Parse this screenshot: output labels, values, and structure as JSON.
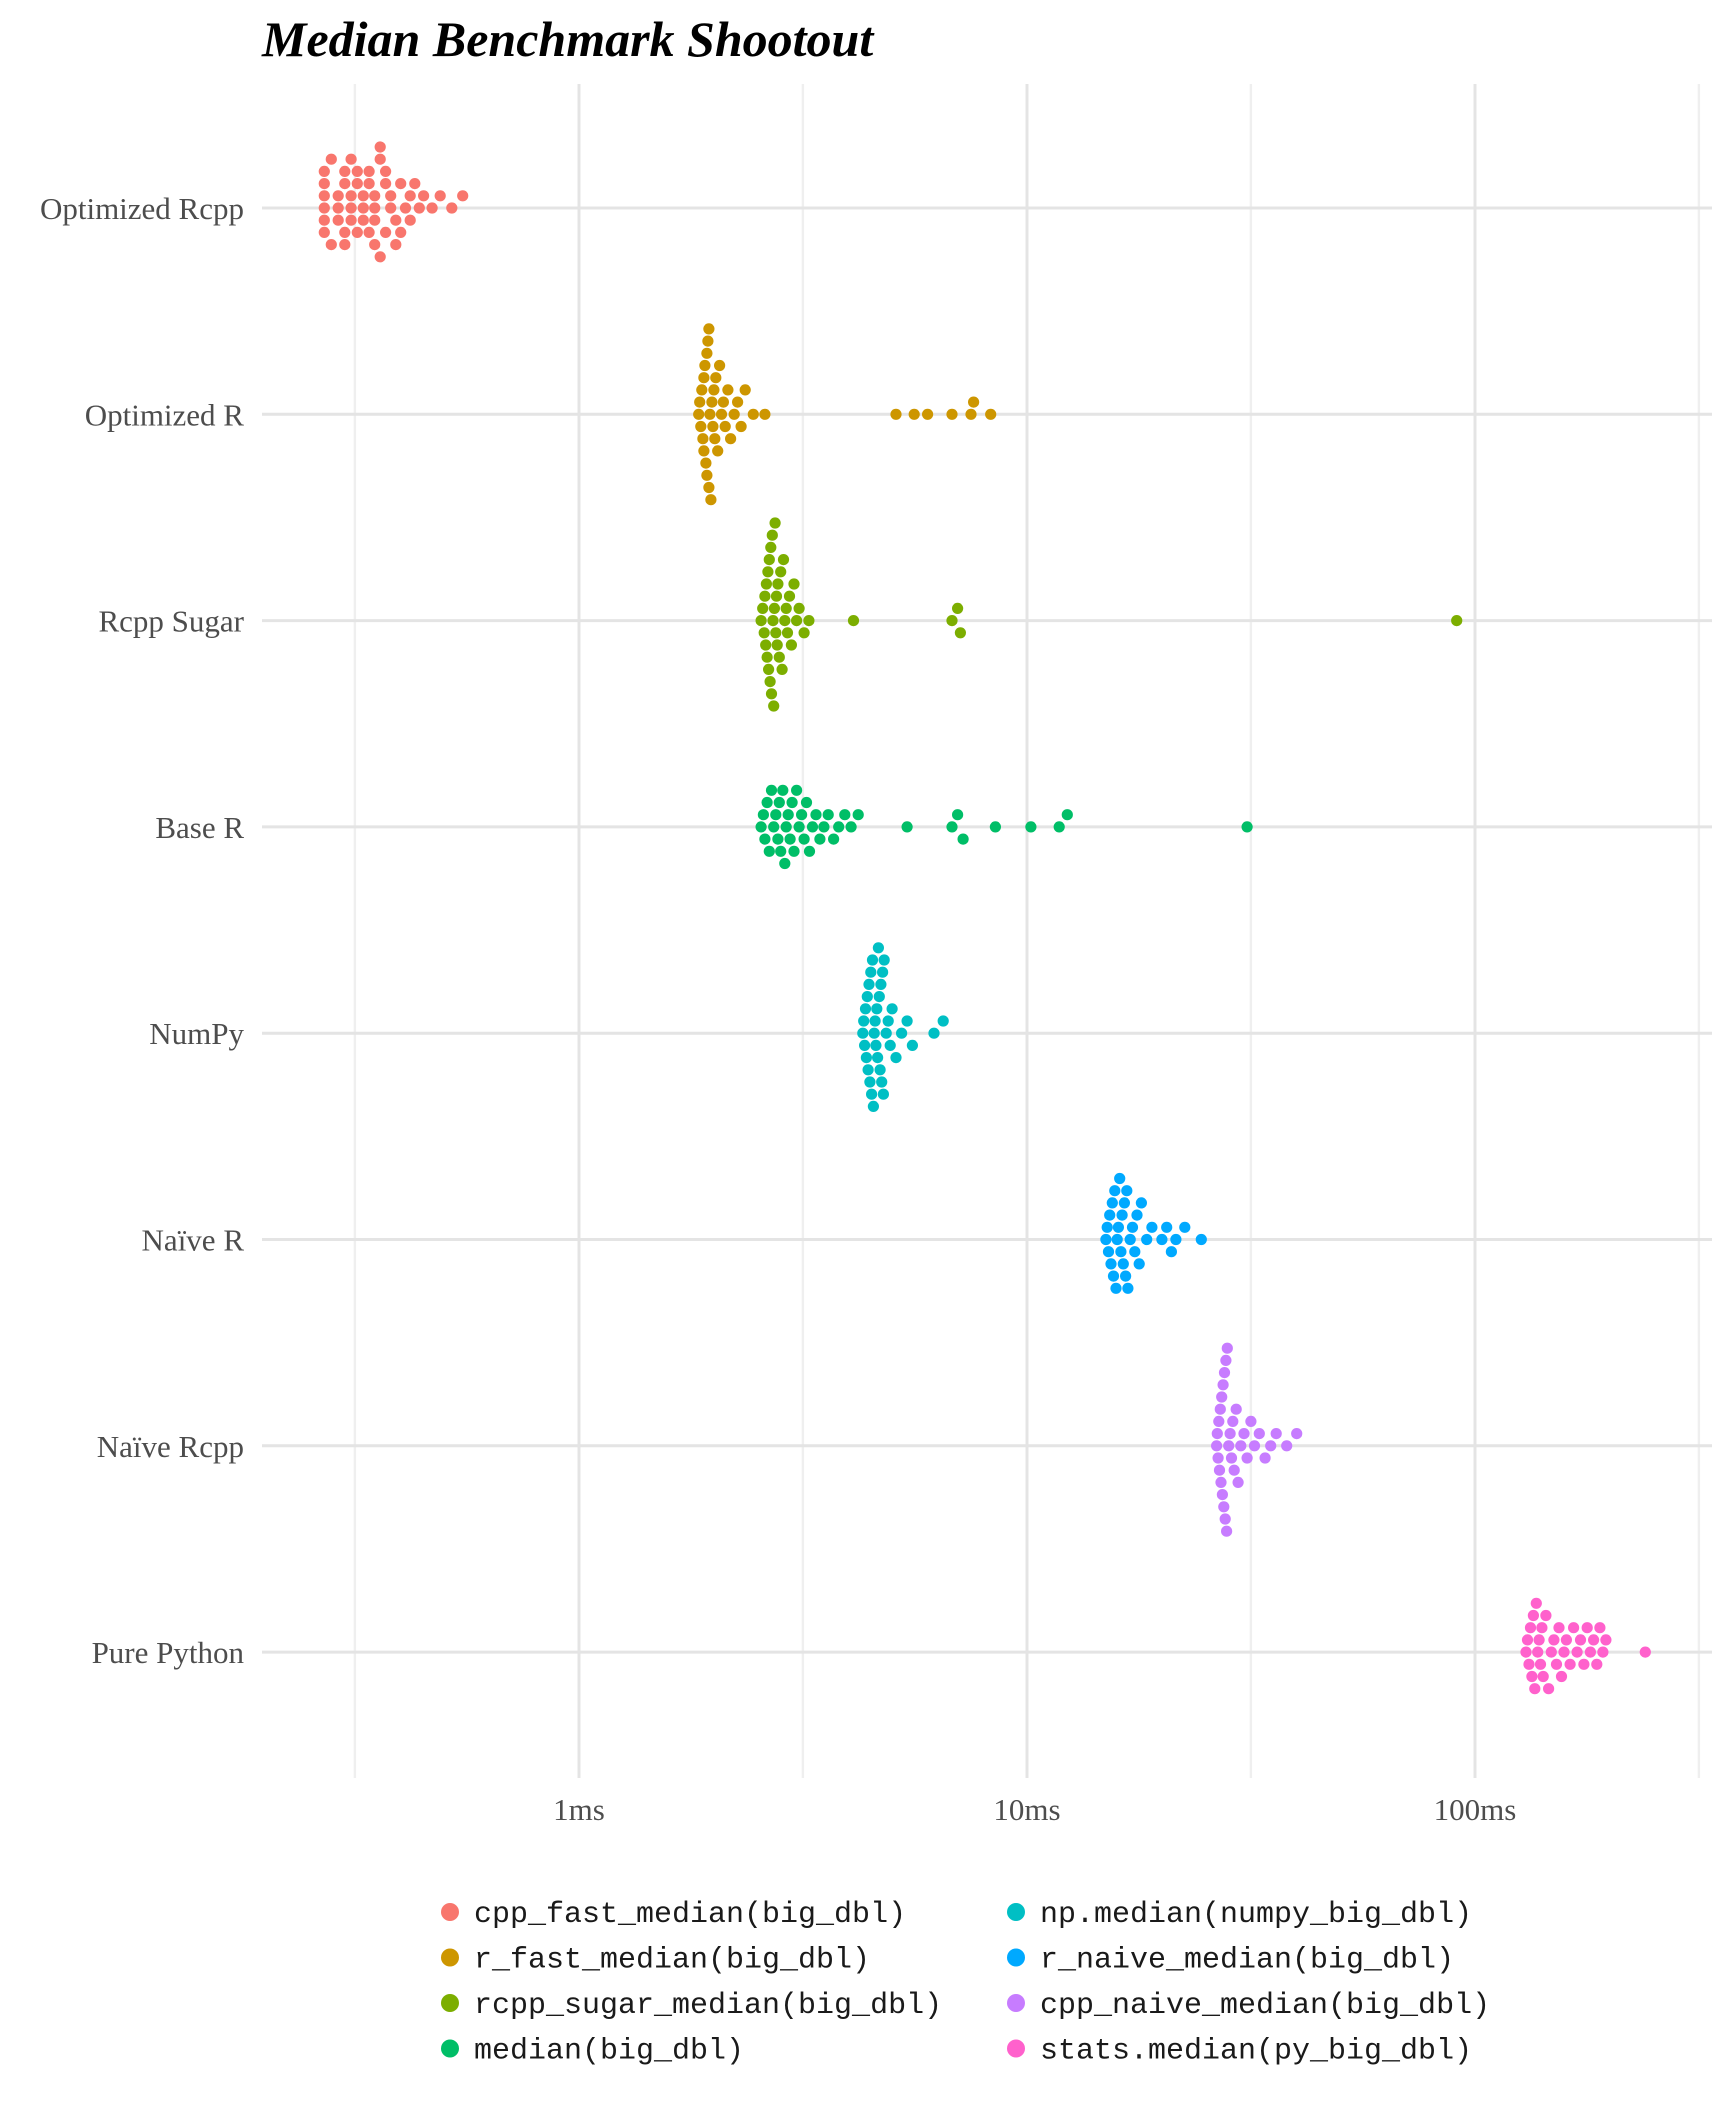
{
  "chart_data": {
    "type": "scatter",
    "subtype": "beeswarm",
    "title": "Median Benchmark Shootout",
    "xlabel": "",
    "ylabel": "",
    "x_scale": "log10",
    "x_unit": "ms",
    "xlim": [
      0.22,
      260
    ],
    "x_ticks": [
      {
        "value": 1,
        "label": "1ms"
      },
      {
        "value": 10,
        "label": "10ms"
      },
      {
        "value": 100,
        "label": "100ms"
      }
    ],
    "x_minor_ticks": [
      0.316,
      3.16,
      31.6
    ],
    "grid": true,
    "legend_position": "bottom",
    "categories": [
      "Optimized Rcpp",
      "Optimized R",
      "Rcpp Sugar",
      "Base R",
      "NumPy",
      "Naïve R",
      "Naïve Rcpp",
      "Pure Python"
    ],
    "series": [
      {
        "name": "cpp_fast_median(big_dbl)",
        "category": "Optimized Rcpp",
        "color": "#F8766D",
        "values": [
          0.27,
          0.27,
          0.27,
          0.27,
          0.27,
          0.27,
          0.28,
          0.28,
          0.29,
          0.29,
          0.29,
          0.3,
          0.3,
          0.3,
          0.3,
          0.31,
          0.31,
          0.31,
          0.31,
          0.32,
          0.32,
          0.32,
          0.33,
          0.33,
          0.33,
          0.34,
          0.34,
          0.34,
          0.35,
          0.35,
          0.35,
          0.35,
          0.36,
          0.36,
          0.36,
          0.37,
          0.37,
          0.37,
          0.38,
          0.38,
          0.39,
          0.39,
          0.4,
          0.4,
          0.41,
          0.42,
          0.42,
          0.43,
          0.44,
          0.45,
          0.47,
          0.49,
          0.52,
          0.55
        ]
      },
      {
        "name": "r_fast_median(big_dbl)",
        "category": "Optimized R",
        "color": "#CD9600",
        "values": [
          1.85,
          1.86,
          1.87,
          1.88,
          1.89,
          1.9,
          1.9,
          1.91,
          1.92,
          1.93,
          1.93,
          1.94,
          1.95,
          1.95,
          1.96,
          1.97,
          1.98,
          1.99,
          2.0,
          2.01,
          2.02,
          2.04,
          2.06,
          2.08,
          2.1,
          2.12,
          2.15,
          2.18,
          2.22,
          2.26,
          2.3,
          2.35,
          2.45,
          2.6,
          5.1,
          5.6,
          6.0,
          6.8,
          7.5,
          7.6,
          8.3
        ]
      },
      {
        "name": "rcpp_sugar_median(big_dbl)",
        "category": "Rcpp Sugar",
        "color": "#7CAE00",
        "values": [
          2.55,
          2.57,
          2.59,
          2.6,
          2.61,
          2.62,
          2.63,
          2.64,
          2.65,
          2.66,
          2.67,
          2.68,
          2.69,
          2.7,
          2.71,
          2.72,
          2.73,
          2.74,
          2.75,
          2.76,
          2.77,
          2.78,
          2.8,
          2.82,
          2.84,
          2.86,
          2.88,
          2.9,
          2.92,
          2.95,
          2.98,
          3.02,
          3.06,
          3.1,
          3.18,
          3.26,
          4.1,
          6.8,
          7.0,
          7.1,
          91
        ]
      },
      {
        "name": "median(big_dbl)",
        "category": "Base R",
        "color": "#00BE67",
        "values": [
          2.55,
          2.58,
          2.6,
          2.63,
          2.66,
          2.69,
          2.72,
          2.75,
          2.78,
          2.8,
          2.82,
          2.85,
          2.88,
          2.9,
          2.93,
          2.96,
          2.99,
          3.02,
          3.06,
          3.1,
          3.14,
          3.18,
          3.22,
          3.27,
          3.32,
          3.38,
          3.45,
          3.52,
          3.6,
          3.7,
          3.8,
          3.92,
          4.05,
          4.2,
          5.4,
          6.8,
          7.0,
          7.2,
          8.5,
          10.2,
          11.8,
          12.3,
          31
        ]
      },
      {
        "name": "np.median(numpy_big_dbl)",
        "category": "NumPy",
        "color": "#00BFC4",
        "values": [
          4.3,
          4.32,
          4.34,
          4.36,
          4.38,
          4.4,
          4.42,
          4.44,
          4.46,
          4.48,
          4.5,
          4.52,
          4.54,
          4.56,
          4.58,
          4.6,
          4.62,
          4.64,
          4.66,
          4.68,
          4.7,
          4.72,
          4.74,
          4.76,
          4.78,
          4.8,
          4.85,
          4.9,
          4.95,
          5.0,
          5.1,
          5.25,
          5.4,
          5.55,
          6.2,
          6.5
        ]
      },
      {
        "name": "r_naive_median(big_dbl)",
        "category": "Naïve R",
        "color": "#00A9FF",
        "values": [
          15.0,
          15.1,
          15.2,
          15.3,
          15.4,
          15.5,
          15.6,
          15.7,
          15.8,
          15.9,
          16.0,
          16.1,
          16.2,
          16.3,
          16.4,
          16.5,
          16.6,
          16.7,
          16.8,
          17.0,
          17.2,
          17.4,
          17.6,
          17.8,
          18.0,
          18.5,
          19.0,
          20.0,
          20.5,
          21.0,
          21.5,
          22.5,
          24.5
        ]
      },
      {
        "name": "cpp_naive_median(big_dbl)",
        "category": "Naïve Rcpp",
        "color": "#C77CFF",
        "values": [
          26.5,
          26.6,
          26.7,
          26.8,
          26.9,
          27.0,
          27.1,
          27.2,
          27.3,
          27.4,
          27.5,
          27.6,
          27.7,
          27.8,
          27.9,
          28.0,
          28.2,
          28.4,
          28.6,
          28.8,
          29.0,
          29.3,
          29.6,
          30.0,
          30.5,
          31.0,
          31.6,
          32.2,
          33.0,
          34.0,
          35.0,
          36.0,
          38.0,
          40.0
        ]
      },
      {
        "name": "stats.median(py_big_dbl)",
        "category": "Pure Python",
        "color": "#FF61CC",
        "values": [
          130,
          131,
          132,
          133,
          134,
          135,
          136,
          137,
          138,
          139,
          140,
          141,
          142,
          144,
          146,
          148,
          150,
          152,
          154,
          156,
          158,
          160,
          163,
          166,
          169,
          172,
          175,
          178,
          181,
          184,
          187,
          190,
          193,
          196,
          240
        ]
      }
    ]
  }
}
